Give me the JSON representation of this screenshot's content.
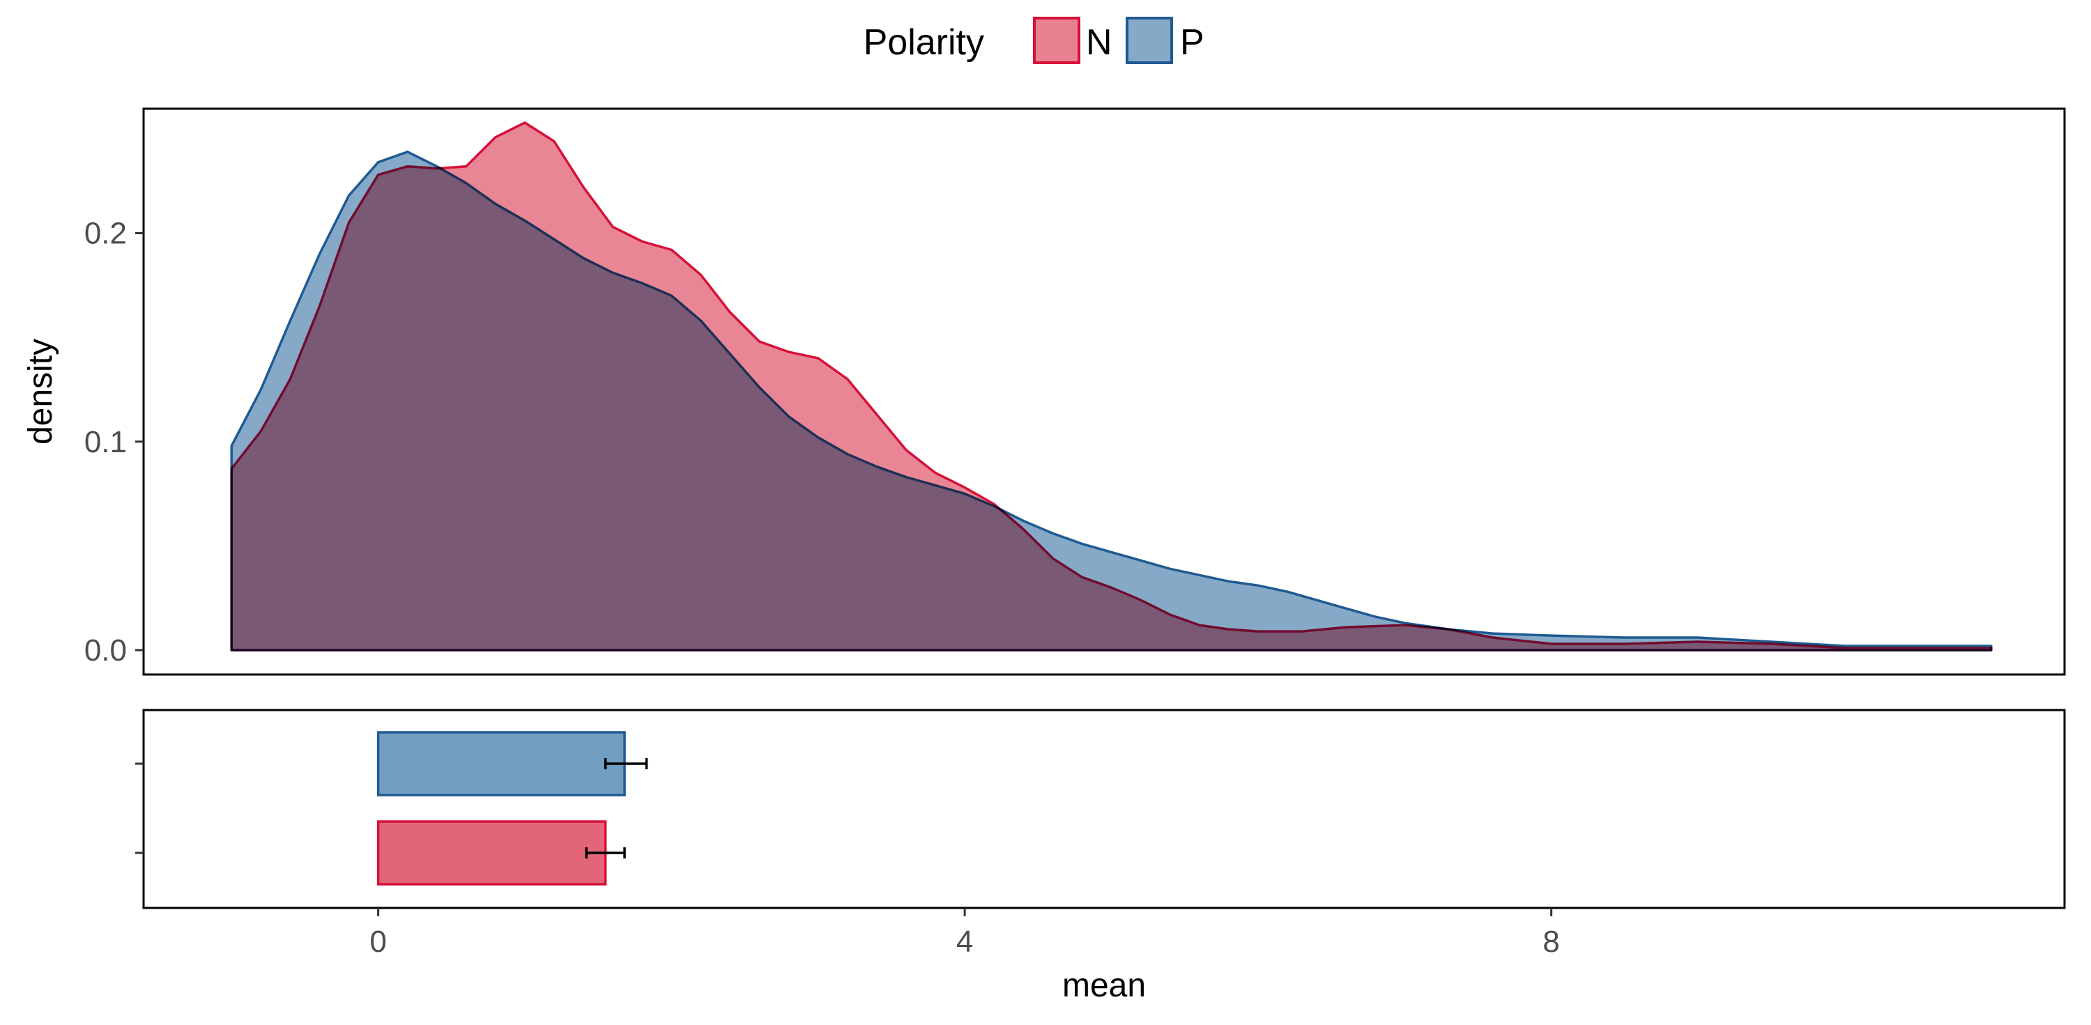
{
  "legend": {
    "title": "Polarity",
    "items": [
      {
        "label": "N",
        "fill": "#e8808f",
        "stroke": "#d6113a"
      },
      {
        "label": "P",
        "fill": "#86a9c8",
        "stroke": "#1f5a92"
      }
    ]
  },
  "chart_data": [
    {
      "type": "area",
      "subtype": "density",
      "ylabel": "density",
      "ylim": [
        0,
        0.255
      ],
      "xlim": [
        -1.6,
        11.5
      ],
      "yticks": [
        0.0,
        0.1,
        0.2
      ],
      "ytick_labels": [
        "0.0",
        "0.1",
        "0.2"
      ],
      "grid": false,
      "legend_position": "top",
      "series": [
        {
          "name": "N",
          "color": "#d6113a",
          "fill": "#e8808f",
          "points": [
            [
              -1.0,
              0.087
            ],
            [
              -0.8,
              0.105
            ],
            [
              -0.6,
              0.13
            ],
            [
              -0.4,
              0.165
            ],
            [
              -0.2,
              0.205
            ],
            [
              0.0,
              0.228
            ],
            [
              0.2,
              0.232
            ],
            [
              0.4,
              0.231
            ],
            [
              0.6,
              0.232
            ],
            [
              0.8,
              0.246
            ],
            [
              1.0,
              0.253
            ],
            [
              1.2,
              0.244
            ],
            [
              1.4,
              0.222
            ],
            [
              1.6,
              0.203
            ],
            [
              1.8,
              0.196
            ],
            [
              2.0,
              0.192
            ],
            [
              2.2,
              0.18
            ],
            [
              2.4,
              0.162
            ],
            [
              2.6,
              0.148
            ],
            [
              2.8,
              0.143
            ],
            [
              3.0,
              0.14
            ],
            [
              3.2,
              0.13
            ],
            [
              3.4,
              0.113
            ],
            [
              3.6,
              0.096
            ],
            [
              3.8,
              0.085
            ],
            [
              4.0,
              0.078
            ],
            [
              4.2,
              0.07
            ],
            [
              4.4,
              0.058
            ],
            [
              4.6,
              0.044
            ],
            [
              4.8,
              0.035
            ],
            [
              5.0,
              0.03
            ],
            [
              5.2,
              0.024
            ],
            [
              5.4,
              0.017
            ],
            [
              5.6,
              0.012
            ],
            [
              5.8,
              0.01
            ],
            [
              6.0,
              0.009
            ],
            [
              6.3,
              0.009
            ],
            [
              6.6,
              0.011
            ],
            [
              7.0,
              0.012
            ],
            [
              7.3,
              0.01
            ],
            [
              7.6,
              0.006
            ],
            [
              8.0,
              0.003
            ],
            [
              8.5,
              0.003
            ],
            [
              9.0,
              0.004
            ],
            [
              9.5,
              0.003
            ],
            [
              10.0,
              0.001
            ],
            [
              10.5,
              0.001
            ],
            [
              11.0,
              0.001
            ],
            [
              11.0,
              0.001
            ]
          ]
        },
        {
          "name": "P",
          "color": "#1f5a92",
          "fill": "#86a9c8",
          "points": [
            [
              -1.0,
              0.098
            ],
            [
              -0.8,
              0.125
            ],
            [
              -0.6,
              0.158
            ],
            [
              -0.4,
              0.19
            ],
            [
              -0.2,
              0.218
            ],
            [
              0.0,
              0.234
            ],
            [
              0.2,
              0.239
            ],
            [
              0.4,
              0.232
            ],
            [
              0.6,
              0.224
            ],
            [
              0.8,
              0.214
            ],
            [
              1.0,
              0.206
            ],
            [
              1.2,
              0.197
            ],
            [
              1.4,
              0.188
            ],
            [
              1.6,
              0.181
            ],
            [
              1.8,
              0.176
            ],
            [
              2.0,
              0.17
            ],
            [
              2.2,
              0.158
            ],
            [
              2.4,
              0.142
            ],
            [
              2.6,
              0.126
            ],
            [
              2.8,
              0.112
            ],
            [
              3.0,
              0.102
            ],
            [
              3.2,
              0.094
            ],
            [
              3.4,
              0.088
            ],
            [
              3.6,
              0.083
            ],
            [
              3.8,
              0.079
            ],
            [
              4.0,
              0.075
            ],
            [
              4.2,
              0.069
            ],
            [
              4.4,
              0.062
            ],
            [
              4.6,
              0.056
            ],
            [
              4.8,
              0.051
            ],
            [
              5.0,
              0.047
            ],
            [
              5.2,
              0.043
            ],
            [
              5.4,
              0.039
            ],
            [
              5.6,
              0.036
            ],
            [
              5.8,
              0.033
            ],
            [
              6.0,
              0.031
            ],
            [
              6.2,
              0.028
            ],
            [
              6.4,
              0.024
            ],
            [
              6.6,
              0.02
            ],
            [
              6.8,
              0.016
            ],
            [
              7.0,
              0.013
            ],
            [
              7.3,
              0.01
            ],
            [
              7.6,
              0.008
            ],
            [
              8.0,
              0.007
            ],
            [
              8.5,
              0.006
            ],
            [
              9.0,
              0.006
            ],
            [
              9.5,
              0.004
            ],
            [
              10.0,
              0.002
            ],
            [
              10.5,
              0.002
            ],
            [
              11.0,
              0.002
            ],
            [
              11.0,
              0.002
            ]
          ]
        }
      ]
    },
    {
      "type": "bar",
      "orientation": "horizontal",
      "xlabel": "mean",
      "xlim": [
        -1.6,
        11.5
      ],
      "xticks": [
        0,
        4,
        8
      ],
      "xtick_labels": [
        "0",
        "4",
        "8"
      ],
      "categories": [
        "P",
        "N"
      ],
      "series": [
        {
          "name": "P",
          "value": 1.68,
          "error": [
            1.55,
            1.83
          ],
          "color": "#1f5a92",
          "fill": "#729fc1"
        },
        {
          "name": "N",
          "value": 1.55,
          "error": [
            1.42,
            1.68
          ],
          "color": "#d6113a",
          "fill": "#e36678"
        }
      ]
    }
  ]
}
